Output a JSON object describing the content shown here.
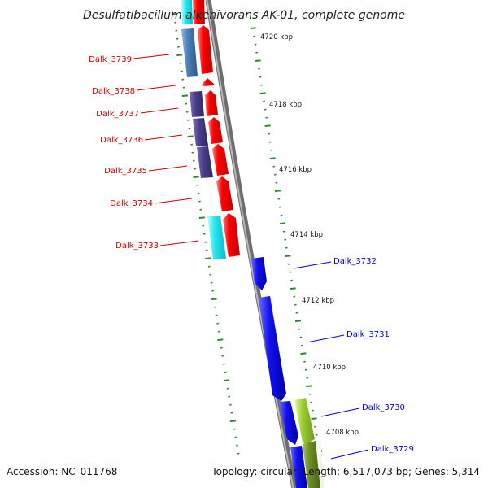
{
  "title": "Desulfatibacillum alkenivorans AK-01, complete genome",
  "footer": {
    "accession": "Accession: NC_011768",
    "topology": "Topology: circular; Length: 6,517,073 bp; Genes: 5,314"
  },
  "colors": {
    "backbone": "#8f8f8f",
    "tick": "#2a8a2a",
    "left_label": "#cc0000",
    "right_label": "#0000cc",
    "red_gene": "#ff0000",
    "cyan_gene": "#22e6ee",
    "steel_gene": "#4a7fb6",
    "purple_gene": "#4b3f8a",
    "blue_gene": "#1010ee",
    "green_gene": "#9acd32",
    "olive_gene": "#6b8e23"
  },
  "kbp_labels": [
    "4720 kbp",
    "4718 kbp",
    "4716 kbp",
    "4714 kbp",
    "4712 kbp",
    "4710 kbp",
    "4708 kbp"
  ],
  "left_genes": [
    "Dalk_3739",
    "Dalk_3738",
    "Dalk_3737",
    "Dalk_3736",
    "Dalk_3735",
    "Dalk_3734",
    "Dalk_3733"
  ],
  "right_genes": [
    "Dalk_3732",
    "Dalk_3731",
    "Dalk_3730",
    "Dalk_3729"
  ]
}
